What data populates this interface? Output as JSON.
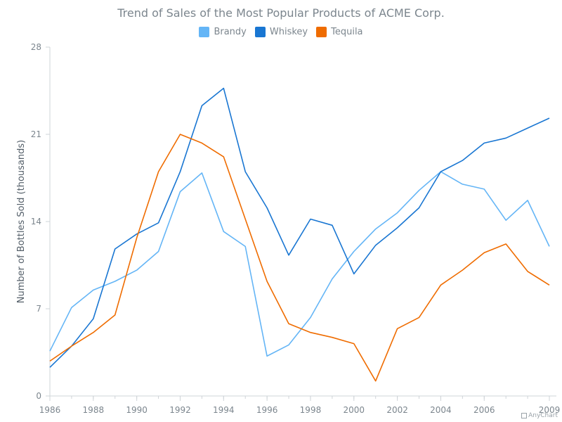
{
  "chart_data": {
    "type": "line",
    "title": "Trend of Sales of the Most Popular Products of ACME Corp.",
    "xlabel": "",
    "ylabel": "Number of Bottles Sold (thousands)",
    "ylim": [
      0,
      28
    ],
    "yticks": [
      0,
      7,
      14,
      21,
      28
    ],
    "xlim": [
      1986,
      2009
    ],
    "xticks": [
      1986,
      1988,
      1990,
      1992,
      1994,
      1996,
      1998,
      2000,
      2002,
      2004,
      2006,
      2009
    ],
    "legend_position": "top",
    "x": [
      1986,
      1987,
      1988,
      1989,
      1990,
      1991,
      1992,
      1993,
      1994,
      1995,
      1996,
      1997,
      1998,
      1999,
      2000,
      2001,
      2002,
      2003,
      2004,
      2005,
      2006,
      2007,
      2008,
      2009
    ],
    "series": [
      {
        "name": "Brandy",
        "color": "#64b5f6",
        "values": [
          3.6,
          7.1,
          8.5,
          9.2,
          10.1,
          11.6,
          16.4,
          17.9,
          13.2,
          12.0,
          3.2,
          4.1,
          6.3,
          9.4,
          11.6,
          13.4,
          14.7,
          16.5,
          18.0,
          17.0,
          16.6,
          14.1,
          15.7,
          12.0
        ]
      },
      {
        "name": "Whiskey",
        "color": "#1976d2",
        "values": [
          2.3,
          4.0,
          6.2,
          11.8,
          13.0,
          13.9,
          18.0,
          23.3,
          24.7,
          18.0,
          15.1,
          11.3,
          14.2,
          13.7,
          9.8,
          12.1,
          13.5,
          15.1,
          18.0,
          18.9,
          20.3,
          20.7,
          21.5,
          22.3
        ]
      },
      {
        "name": "Tequila",
        "color": "#ef6c00",
        "values": [
          2.8,
          4.0,
          5.1,
          6.5,
          12.7,
          18.0,
          21.0,
          20.3,
          19.2,
          14.2,
          9.2,
          5.8,
          5.1,
          4.7,
          4.2,
          1.2,
          5.4,
          6.3,
          8.9,
          10.1,
          11.5,
          12.2,
          10.0,
          8.9
        ]
      }
    ]
  },
  "credit": "AnyChart"
}
